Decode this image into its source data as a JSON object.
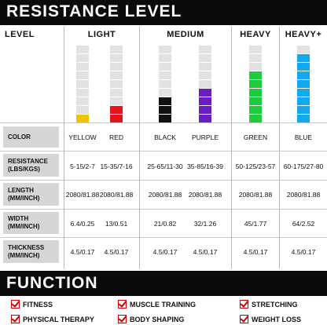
{
  "title": "RESISTANCE LEVEL",
  "col_headers": {
    "level": "LEVEL",
    "light": "LIGHT",
    "medium": "MEDIUM",
    "heavy": "HEAVY",
    "heavy_plus": "HEAVY+"
  },
  "colors": {
    "yellow": "#f2c200",
    "red": "#e0161b",
    "black": "#111111",
    "purple": "#6a1fc0",
    "green": "#1dcd3c",
    "blue": "#14a9ee",
    "empty": "#e2e2e2"
  },
  "bands": [
    {
      "name": "yellow",
      "filled": 1,
      "total": 9
    },
    {
      "name": "red",
      "filled": 2,
      "total": 9
    },
    {
      "name": "black",
      "filled": 3,
      "total": 9
    },
    {
      "name": "purple",
      "filled": 4,
      "total": 9
    },
    {
      "name": "green",
      "filled": 6,
      "total": 9
    },
    {
      "name": "blue",
      "filled": 8,
      "total": 9
    }
  ],
  "row_labels": {
    "color": "COLOR",
    "resistance": "RESISTANCE (LBS/KGS)",
    "length": "LENGTH (MM/INCH)",
    "width": "WIDTH (MM/INCH)",
    "thickness": "THICKNESS (MM/INCH)"
  },
  "table": {
    "color": [
      "YELLOW",
      "RED",
      "BLACK",
      "PURPLE",
      "GREEN",
      "BLUE"
    ],
    "resistance": [
      "5-15/2-7",
      "15-35/7-16",
      "25-65/11-30",
      "35-85/16-39",
      "50-125/23-57",
      "60-175/27-80"
    ],
    "length": [
      "2080/81.88",
      "2080/81.88",
      "2080/81.88",
      "2080/81.88",
      "2080/81.88",
      "2080/81.88"
    ],
    "width": [
      "6.4/0.25",
      "13/0.51",
      "21/0.82",
      "32/1.26",
      "45/1.77",
      "64/2.52"
    ],
    "thickness": [
      "4.5/0.17",
      "4.5/0.17",
      "4.5/0.17",
      "4.5/0.17",
      "4.5/0.17",
      "4.5/0.17"
    ]
  },
  "function_title": "FUNCTION",
  "functions": [
    "FITNESS",
    "MUSCLE TRAINING",
    "STRETCHING",
    "PHYSICAL THERAPY",
    "BODY SHAPING",
    "WEIGHT LOSS"
  ]
}
